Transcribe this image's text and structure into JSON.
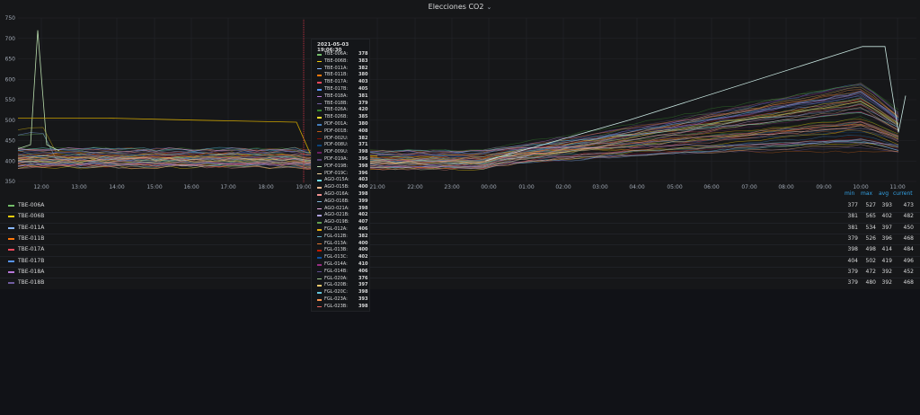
{
  "panel": {
    "title": "Elecciones CO2",
    "dropdown_icon": "chevron-down-icon"
  },
  "chart_data": {
    "type": "line",
    "yticks": [
      "750",
      "700",
      "650",
      "600",
      "550",
      "500",
      "450",
      "400",
      "350"
    ],
    "xticks": [
      "12:00",
      "13:00",
      "14:00",
      "15:00",
      "16:00",
      "17:00",
      "18:00",
      "19:00",
      "21:00",
      "22:00",
      "23:00",
      "00:00",
      "01:00",
      "02:00",
      "03:00",
      "04:00",
      "05:00",
      "06:00",
      "07:00",
      "08:00",
      "09:00",
      "10:00",
      "11:00"
    ],
    "ylim": [
      350,
      750
    ],
    "grid": true,
    "hover_time": "2021-05-03 19:06:30"
  },
  "legend": {
    "headers": {
      "min": "min",
      "max": "max",
      "avg": "avg",
      "current": "current"
    },
    "rows": [
      {
        "name": "TBE-006A",
        "color": "#73bf69",
        "min": "377",
        "max": "527",
        "avg": "393",
        "current": "473"
      },
      {
        "name": "TBE-006B",
        "color": "#f2cc0c",
        "min": "381",
        "max": "565",
        "avg": "402",
        "current": "482"
      },
      {
        "name": "TBE-011A",
        "color": "#8ab8ff",
        "min": "381",
        "max": "534",
        "avg": "397",
        "current": "450"
      },
      {
        "name": "TBE-011B",
        "color": "#ff780a",
        "min": "379",
        "max": "526",
        "avg": "396",
        "current": "468"
      },
      {
        "name": "TBE-017A",
        "color": "#f2495c",
        "min": "398",
        "max": "498",
        "avg": "414",
        "current": "484"
      },
      {
        "name": "TBE-017B",
        "color": "#5794f2",
        "min": "404",
        "max": "502",
        "avg": "419",
        "current": "496"
      },
      {
        "name": "TBE-018A",
        "color": "#b877d9",
        "min": "379",
        "max": "472",
        "avg": "392",
        "current": "452"
      },
      {
        "name": "TBE-018B",
        "color": "#705da0",
        "min": "379",
        "max": "480",
        "avg": "392",
        "current": "468"
      }
    ]
  },
  "tooltip": {
    "items": [
      {
        "name": "TBE-006A:",
        "value": "378",
        "color": "#73bf69"
      },
      {
        "name": "TBE-006B:",
        "value": "383",
        "color": "#f2cc0c"
      },
      {
        "name": "TBE-011A:",
        "value": "382",
        "color": "#8ab8ff"
      },
      {
        "name": "TBE-011B:",
        "value": "380",
        "color": "#ff780a"
      },
      {
        "name": "TBE-017A:",
        "value": "403",
        "color": "#f2495c"
      },
      {
        "name": "TBE-017B:",
        "value": "405",
        "color": "#5794f2"
      },
      {
        "name": "TBE-018A:",
        "value": "381",
        "color": "#b877d9"
      },
      {
        "name": "TBE-018B:",
        "value": "379",
        "color": "#705da0"
      },
      {
        "name": "TBE-026A:",
        "value": "420",
        "color": "#37872d"
      },
      {
        "name": "TBE-026B:",
        "value": "385",
        "color": "#fade2a"
      },
      {
        "name": "PDF-001A:",
        "value": "380",
        "color": "#447ebc"
      },
      {
        "name": "PDF-001B:",
        "value": "408",
        "color": "#c15c17"
      },
      {
        "name": "PDF-002U:",
        "value": "382",
        "color": "#890f02"
      },
      {
        "name": "PDF-008U:",
        "value": "371",
        "color": "#0a437c"
      },
      {
        "name": "PDF-009U:",
        "value": "398",
        "color": "#6d1f62"
      },
      {
        "name": "PDF-019A:",
        "value": "396",
        "color": "#584477"
      },
      {
        "name": "PDF-019B:",
        "value": "398",
        "color": "#b7dbab"
      },
      {
        "name": "PDF-019C:",
        "value": "396",
        "color": "#f4d598"
      },
      {
        "name": "AGO-015A:",
        "value": "403",
        "color": "#70dbed"
      },
      {
        "name": "AGO-015B:",
        "value": "400",
        "color": "#f9ba8f"
      },
      {
        "name": "AGO-016A:",
        "value": "398",
        "color": "#f29191"
      },
      {
        "name": "AGO-016B:",
        "value": "399",
        "color": "#82b5d8"
      },
      {
        "name": "AGO-021A:",
        "value": "398",
        "color": "#e5a8e2"
      },
      {
        "name": "AGO-021B:",
        "value": "402",
        "color": "#aea2e0"
      },
      {
        "name": "AGO-019B:",
        "value": "407",
        "color": "#629e51"
      },
      {
        "name": "FGL-012A:",
        "value": "406",
        "color": "#e5ac0e"
      },
      {
        "name": "FGL-012B:",
        "value": "382",
        "color": "#64b0c8"
      },
      {
        "name": "FGL-013A:",
        "value": "400",
        "color": "#e0752d"
      },
      {
        "name": "FGL-013B:",
        "value": "400",
        "color": "#bf1b00"
      },
      {
        "name": "FGL-013C:",
        "value": "402",
        "color": "#0a50a1"
      },
      {
        "name": "FGL-014A:",
        "value": "410",
        "color": "#962d82"
      },
      {
        "name": "FGL-014B:",
        "value": "406",
        "color": "#614d93"
      },
      {
        "name": "FGL-020A:",
        "value": "376",
        "color": "#9ac48a"
      },
      {
        "name": "FGL-020B:",
        "value": "397",
        "color": "#f2c96d"
      },
      {
        "name": "FGL-020C:",
        "value": "398",
        "color": "#65c5db"
      },
      {
        "name": "FGL-023A:",
        "value": "393",
        "color": "#f9934e"
      },
      {
        "name": "FGL-023B:",
        "value": "398",
        "color": "#ea6460"
      }
    ]
  }
}
